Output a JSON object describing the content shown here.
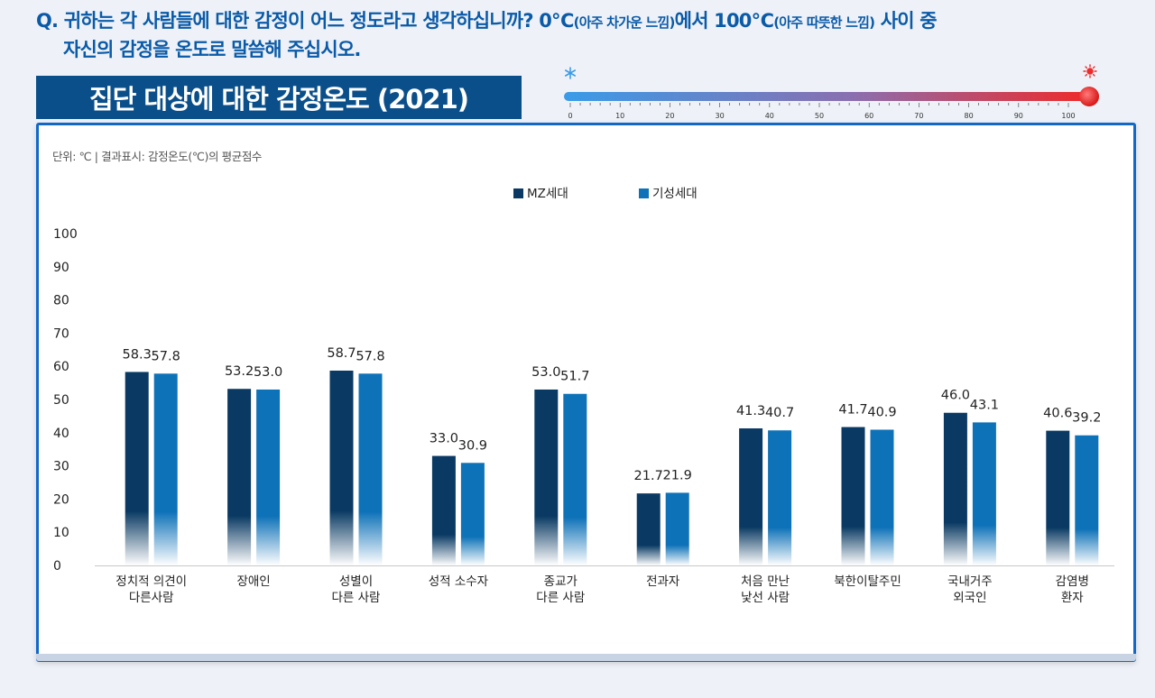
{
  "question": {
    "line1_pre": "Q. 귀하는 각 사람들에 대한 감정이 어느 정도라고 생각하십니까? 0℃",
    "line1_small1": "(아주 차가운 느낌)",
    "line1_mid": "에서 100℃",
    "line1_small2": "(아주 따뜻한 느낌)",
    "line1_post": " 사이 중",
    "line2": "자신의 감정을 온도로 말씀해 주십시오."
  },
  "title": "집단 대상에 대한 감정온도 (2021)",
  "thermometer": {
    "ticks": [
      "0",
      "10",
      "20",
      "30",
      "40",
      "50",
      "60",
      "70",
      "80",
      "90",
      "100"
    ],
    "cold_icon": "snowflake-icon",
    "hot_icon": "sun-icon",
    "cold_color": "#3a9be8",
    "hot_color": "#ee2a2a"
  },
  "unit_note": "단위: ℃  |  결과표시: 감정온도(℃)의 평균점수",
  "colors": {
    "mz": "#0a3a63",
    "gisung": "#0e72b8",
    "accent": "#1268c7",
    "title_bg": "#0b4f8a"
  },
  "chart_data": {
    "type": "bar",
    "categories": [
      [
        "정치적 의견이",
        "다른사람"
      ],
      [
        "장애인"
      ],
      [
        "성별이",
        "다른 사람"
      ],
      [
        "성적 소수자"
      ],
      [
        "종교가",
        "다른 사람"
      ],
      [
        "전과자"
      ],
      [
        "처음 만난",
        "낯선 사람"
      ],
      [
        "북한이탈주민"
      ],
      [
        "국내거주",
        "외국인"
      ],
      [
        "감염병",
        "환자"
      ]
    ],
    "series": [
      {
        "name": "MZ세대",
        "values": [
          58.3,
          53.2,
          58.7,
          33.0,
          53.0,
          21.7,
          41.3,
          41.7,
          46.0,
          40.6
        ]
      },
      {
        "name": "기성세대",
        "values": [
          57.8,
          53.0,
          57.8,
          30.9,
          51.7,
          21.9,
          40.7,
          40.9,
          43.1,
          39.2
        ]
      }
    ],
    "value_labels": [
      [
        "58.3",
        "53.2",
        "58.7",
        "33.0",
        "53.0",
        "21.7",
        "41.3",
        "41.7",
        "46.0",
        "40.6"
      ],
      [
        "57.8",
        "53.0",
        "57.8",
        "30.9",
        "51.7",
        "21.9",
        "40.7",
        "40.9",
        "43.1",
        "39.2"
      ]
    ],
    "yticks": [
      "0",
      "10",
      "20",
      "30",
      "40",
      "50",
      "60",
      "70",
      "80",
      "90",
      "100"
    ],
    "ylim": [
      0,
      100
    ],
    "legend_position": "top-center",
    "grid": false
  }
}
